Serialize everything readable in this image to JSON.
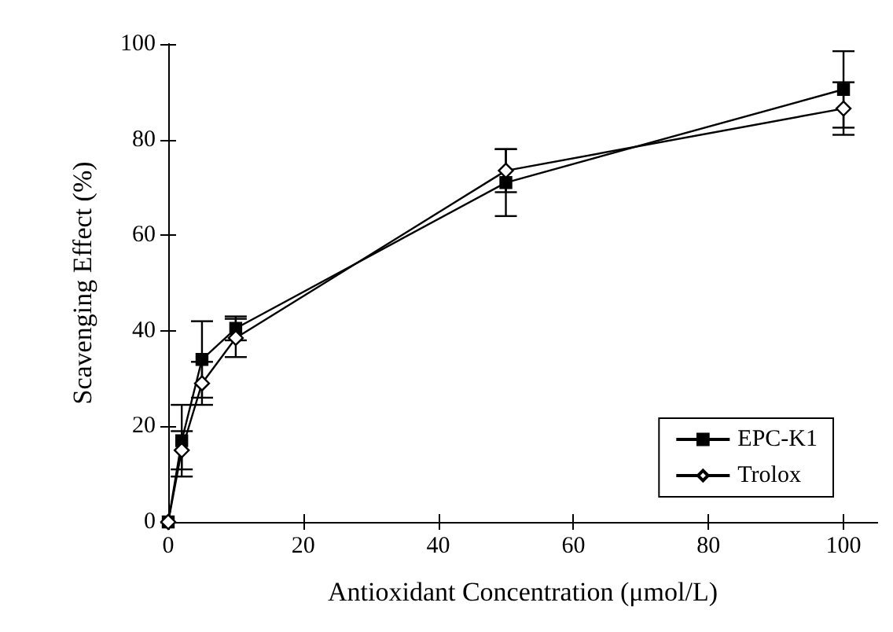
{
  "chart_data": {
    "type": "line",
    "xlabel": "Antioxidant Concentration (μmol/L)",
    "ylabel": "Scavenging Effect (%)",
    "x": [
      0,
      2,
      5,
      10,
      50,
      100
    ],
    "series": [
      {
        "name": "EPC-K1",
        "color": "#000000",
        "marker": "square",
        "values": [
          0,
          17,
          34,
          40.5,
          71,
          90.5
        ],
        "errors": [
          null,
          7.5,
          8,
          2.5,
          7,
          8
        ]
      },
      {
        "name": "Trolox",
        "color": "#000000",
        "marker": "diamond",
        "values": [
          0,
          15,
          29,
          38.5,
          73.5,
          86.5
        ],
        "errors": [
          null,
          4,
          4.5,
          4,
          4.5,
          5.5
        ]
      }
    ],
    "xlim": [
      0,
      105
    ],
    "xticks": [
      0,
      20,
      40,
      60,
      80,
      100
    ],
    "ylim": [
      0,
      100
    ],
    "yticks": [
      0,
      20,
      40,
      60,
      80,
      100
    ],
    "legend": "bottom right",
    "grid": false,
    "line_style": "solid"
  }
}
